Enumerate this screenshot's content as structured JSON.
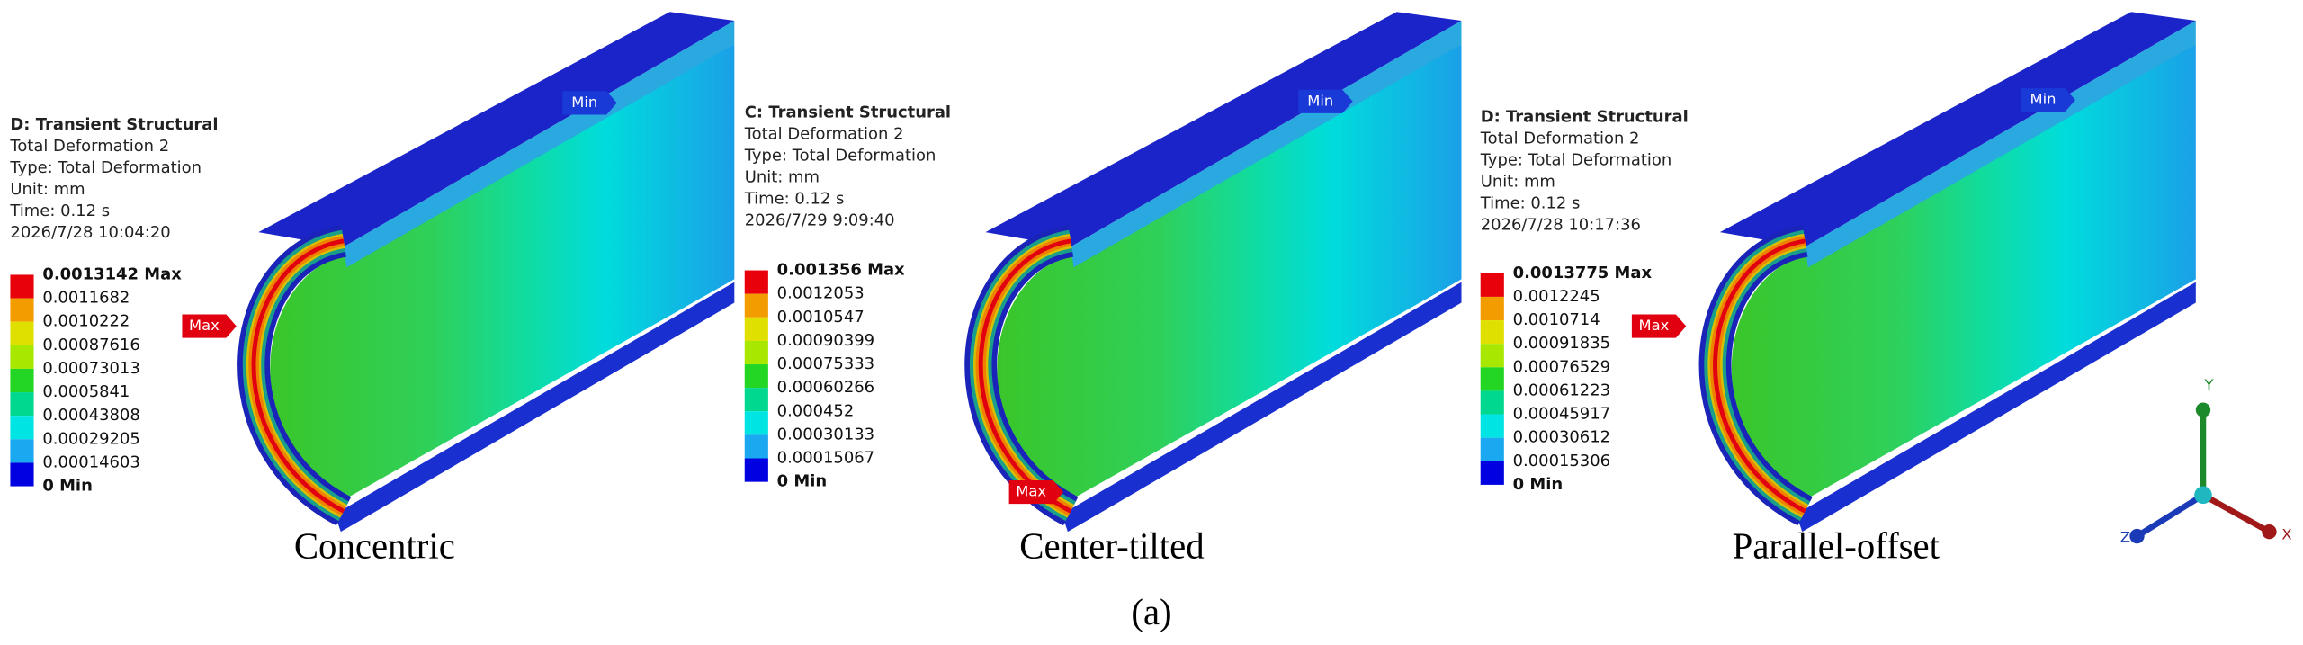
{
  "panels": [
    {
      "header": [
        "D: Transient Structural",
        "Total Deformation 2",
        "Type: Total Deformation",
        "Unit: mm",
        "Time: 0.12 s",
        "2026/7/28 10:04:20"
      ],
      "legend": [
        "0.0013142 Max",
        "0.0011682",
        "0.0010222",
        "0.00087616",
        "0.00073013",
        "0.0005841",
        "0.00043808",
        "0.00029205",
        "0.00014603",
        "0 Min"
      ],
      "max_tag": "Max",
      "min_tag": "Min",
      "caption": "Concentric"
    },
    {
      "header": [
        "C: Transient Structural",
        "Total Deformation 2",
        "Type: Total Deformation",
        "Unit: mm",
        "Time: 0.12 s",
        "2026/7/29 9:09:40"
      ],
      "legend": [
        "0.001356 Max",
        "0.0012053",
        "0.0010547",
        "0.00090399",
        "0.00075333",
        "0.00060266",
        "0.000452",
        "0.00030133",
        "0.00015067",
        "0 Min"
      ],
      "max_tag": "Max",
      "min_tag": "Min",
      "caption": "Center-tilted"
    },
    {
      "header": [
        "D: Transient Structural",
        "Total Deformation 2",
        "Type: Total Deformation",
        "Unit: mm",
        "Time: 0.12 s",
        "2026/7/28 10:17:36"
      ],
      "legend": [
        "0.0013775 Max",
        "0.0012245",
        "0.0010714",
        "0.00091835",
        "0.00076529",
        "0.00061223",
        "0.00045917",
        "0.00030612",
        "0.00015306",
        "0 Min"
      ],
      "max_tag": "Max",
      "min_tag": "Min",
      "caption": "Parallel-offset"
    }
  ],
  "legend_colors": [
    "#e8000b",
    "#f39c00",
    "#e0e000",
    "#a8e800",
    "#24d624",
    "#00d890",
    "#00e4e4",
    "#1aa8f0",
    "#0000e0"
  ],
  "axes": {
    "x": "X",
    "y": "Y",
    "z": "Z"
  },
  "figure_label": "(a)"
}
